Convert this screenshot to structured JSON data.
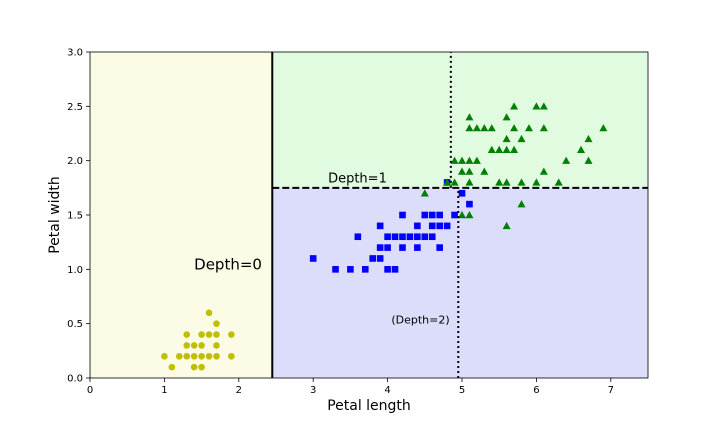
{
  "chart_data": {
    "type": "scatter",
    "xlabel": "Petal length",
    "ylabel": "Petal width",
    "xlim": [
      0,
      7.5
    ],
    "ylim": [
      0,
      3.0
    ],
    "xticks": [
      "0",
      "1",
      "2",
      "3",
      "4",
      "5",
      "6",
      "7"
    ],
    "yticks": [
      "0.0",
      "0.5",
      "1.0",
      "1.5",
      "2.0",
      "2.5",
      "3.0"
    ],
    "grid": false,
    "regions": [
      {
        "x": [
          0,
          2.45
        ],
        "y": [
          0,
          3.0
        ],
        "color": "#fbfbe6"
      },
      {
        "x": [
          2.45,
          7.5
        ],
        "y": [
          1.75,
          3.0
        ],
        "color": "#e1fbe1"
      },
      {
        "x": [
          2.45,
          7.5
        ],
        "y": [
          0,
          1.75
        ],
        "color": "#dcdcfb"
      }
    ],
    "splits": [
      {
        "orientation": "vertical",
        "value": 2.45,
        "y": [
          0,
          3.0
        ],
        "style": "solid",
        "label": "Depth=0",
        "label_pos": [
          1.4,
          1.0
        ]
      },
      {
        "orientation": "horizontal",
        "value": 1.75,
        "x": [
          2.45,
          7.5
        ],
        "style": "dashed",
        "label": "Depth=1",
        "label_pos": [
          3.2,
          1.8
        ]
      },
      {
        "orientation": "vertical",
        "value": 4.95,
        "y": [
          0,
          1.75
        ],
        "style": "dotted",
        "label": "(Depth=2)",
        "label_pos": [
          4.05,
          0.5
        ]
      },
      {
        "orientation": "vertical",
        "value": 4.85,
        "y": [
          1.75,
          3.0
        ],
        "style": "dotted",
        "label": "",
        "label_pos": null
      }
    ],
    "series": [
      {
        "marker": "circle",
        "color": "#bfbf00",
        "points": [
          [
            1.0,
            0.2
          ],
          [
            1.1,
            0.1
          ],
          [
            1.2,
            0.2
          ],
          [
            1.3,
            0.2
          ],
          [
            1.3,
            0.3
          ],
          [
            1.3,
            0.4
          ],
          [
            1.4,
            0.1
          ],
          [
            1.4,
            0.2
          ],
          [
            1.4,
            0.3
          ],
          [
            1.5,
            0.1
          ],
          [
            1.5,
            0.2
          ],
          [
            1.5,
            0.3
          ],
          [
            1.5,
            0.4
          ],
          [
            1.6,
            0.2
          ],
          [
            1.6,
            0.4
          ],
          [
            1.6,
            0.6
          ],
          [
            1.7,
            0.2
          ],
          [
            1.7,
            0.3
          ],
          [
            1.7,
            0.4
          ],
          [
            1.7,
            0.5
          ],
          [
            1.9,
            0.2
          ],
          [
            1.9,
            0.4
          ]
        ]
      },
      {
        "marker": "square",
        "color": "#0000ff",
        "points": [
          [
            3.0,
            1.1
          ],
          [
            3.3,
            1.0
          ],
          [
            3.5,
            1.0
          ],
          [
            3.6,
            1.3
          ],
          [
            3.7,
            1.0
          ],
          [
            3.8,
            1.1
          ],
          [
            3.9,
            1.1
          ],
          [
            3.9,
            1.2
          ],
          [
            3.9,
            1.4
          ],
          [
            4.0,
            1.0
          ],
          [
            4.0,
            1.2
          ],
          [
            4.0,
            1.3
          ],
          [
            4.1,
            1.0
          ],
          [
            4.1,
            1.3
          ],
          [
            4.2,
            1.2
          ],
          [
            4.2,
            1.3
          ],
          [
            4.2,
            1.5
          ],
          [
            4.3,
            1.3
          ],
          [
            4.4,
            1.2
          ],
          [
            4.4,
            1.3
          ],
          [
            4.4,
            1.4
          ],
          [
            4.5,
            1.3
          ],
          [
            4.5,
            1.5
          ],
          [
            4.6,
            1.3
          ],
          [
            4.6,
            1.4
          ],
          [
            4.6,
            1.5
          ],
          [
            4.7,
            1.2
          ],
          [
            4.7,
            1.4
          ],
          [
            4.7,
            1.5
          ],
          [
            4.8,
            1.4
          ],
          [
            4.8,
            1.8
          ],
          [
            4.9,
            1.5
          ],
          [
            5.0,
            1.7
          ],
          [
            5.1,
            1.6
          ]
        ]
      },
      {
        "marker": "triangle",
        "color": "#008000",
        "points": [
          [
            4.5,
            1.7
          ],
          [
            4.8,
            1.8
          ],
          [
            4.9,
            1.8
          ],
          [
            4.9,
            2.0
          ],
          [
            5.0,
            1.5
          ],
          [
            5.0,
            1.9
          ],
          [
            5.0,
            2.0
          ],
          [
            5.1,
            1.5
          ],
          [
            5.1,
            1.8
          ],
          [
            5.1,
            1.9
          ],
          [
            5.1,
            2.0
          ],
          [
            5.1,
            2.3
          ],
          [
            5.1,
            2.4
          ],
          [
            5.2,
            2.0
          ],
          [
            5.2,
            2.3
          ],
          [
            5.3,
            1.9
          ],
          [
            5.3,
            2.3
          ],
          [
            5.4,
            2.1
          ],
          [
            5.4,
            2.3
          ],
          [
            5.5,
            1.8
          ],
          [
            5.5,
            2.1
          ],
          [
            5.6,
            1.4
          ],
          [
            5.6,
            1.8
          ],
          [
            5.6,
            2.1
          ],
          [
            5.6,
            2.2
          ],
          [
            5.6,
            2.4
          ],
          [
            5.7,
            2.1
          ],
          [
            5.7,
            2.3
          ],
          [
            5.7,
            2.5
          ],
          [
            5.8,
            1.6
          ],
          [
            5.8,
            1.8
          ],
          [
            5.8,
            2.2
          ],
          [
            5.9,
            2.3
          ],
          [
            6.0,
            1.8
          ],
          [
            6.0,
            2.5
          ],
          [
            6.1,
            1.9
          ],
          [
            6.1,
            2.3
          ],
          [
            6.1,
            2.5
          ],
          [
            6.3,
            1.8
          ],
          [
            6.4,
            2.0
          ],
          [
            6.6,
            2.1
          ],
          [
            6.7,
            2.0
          ],
          [
            6.7,
            2.2
          ],
          [
            6.9,
            2.3
          ]
        ]
      }
    ]
  }
}
